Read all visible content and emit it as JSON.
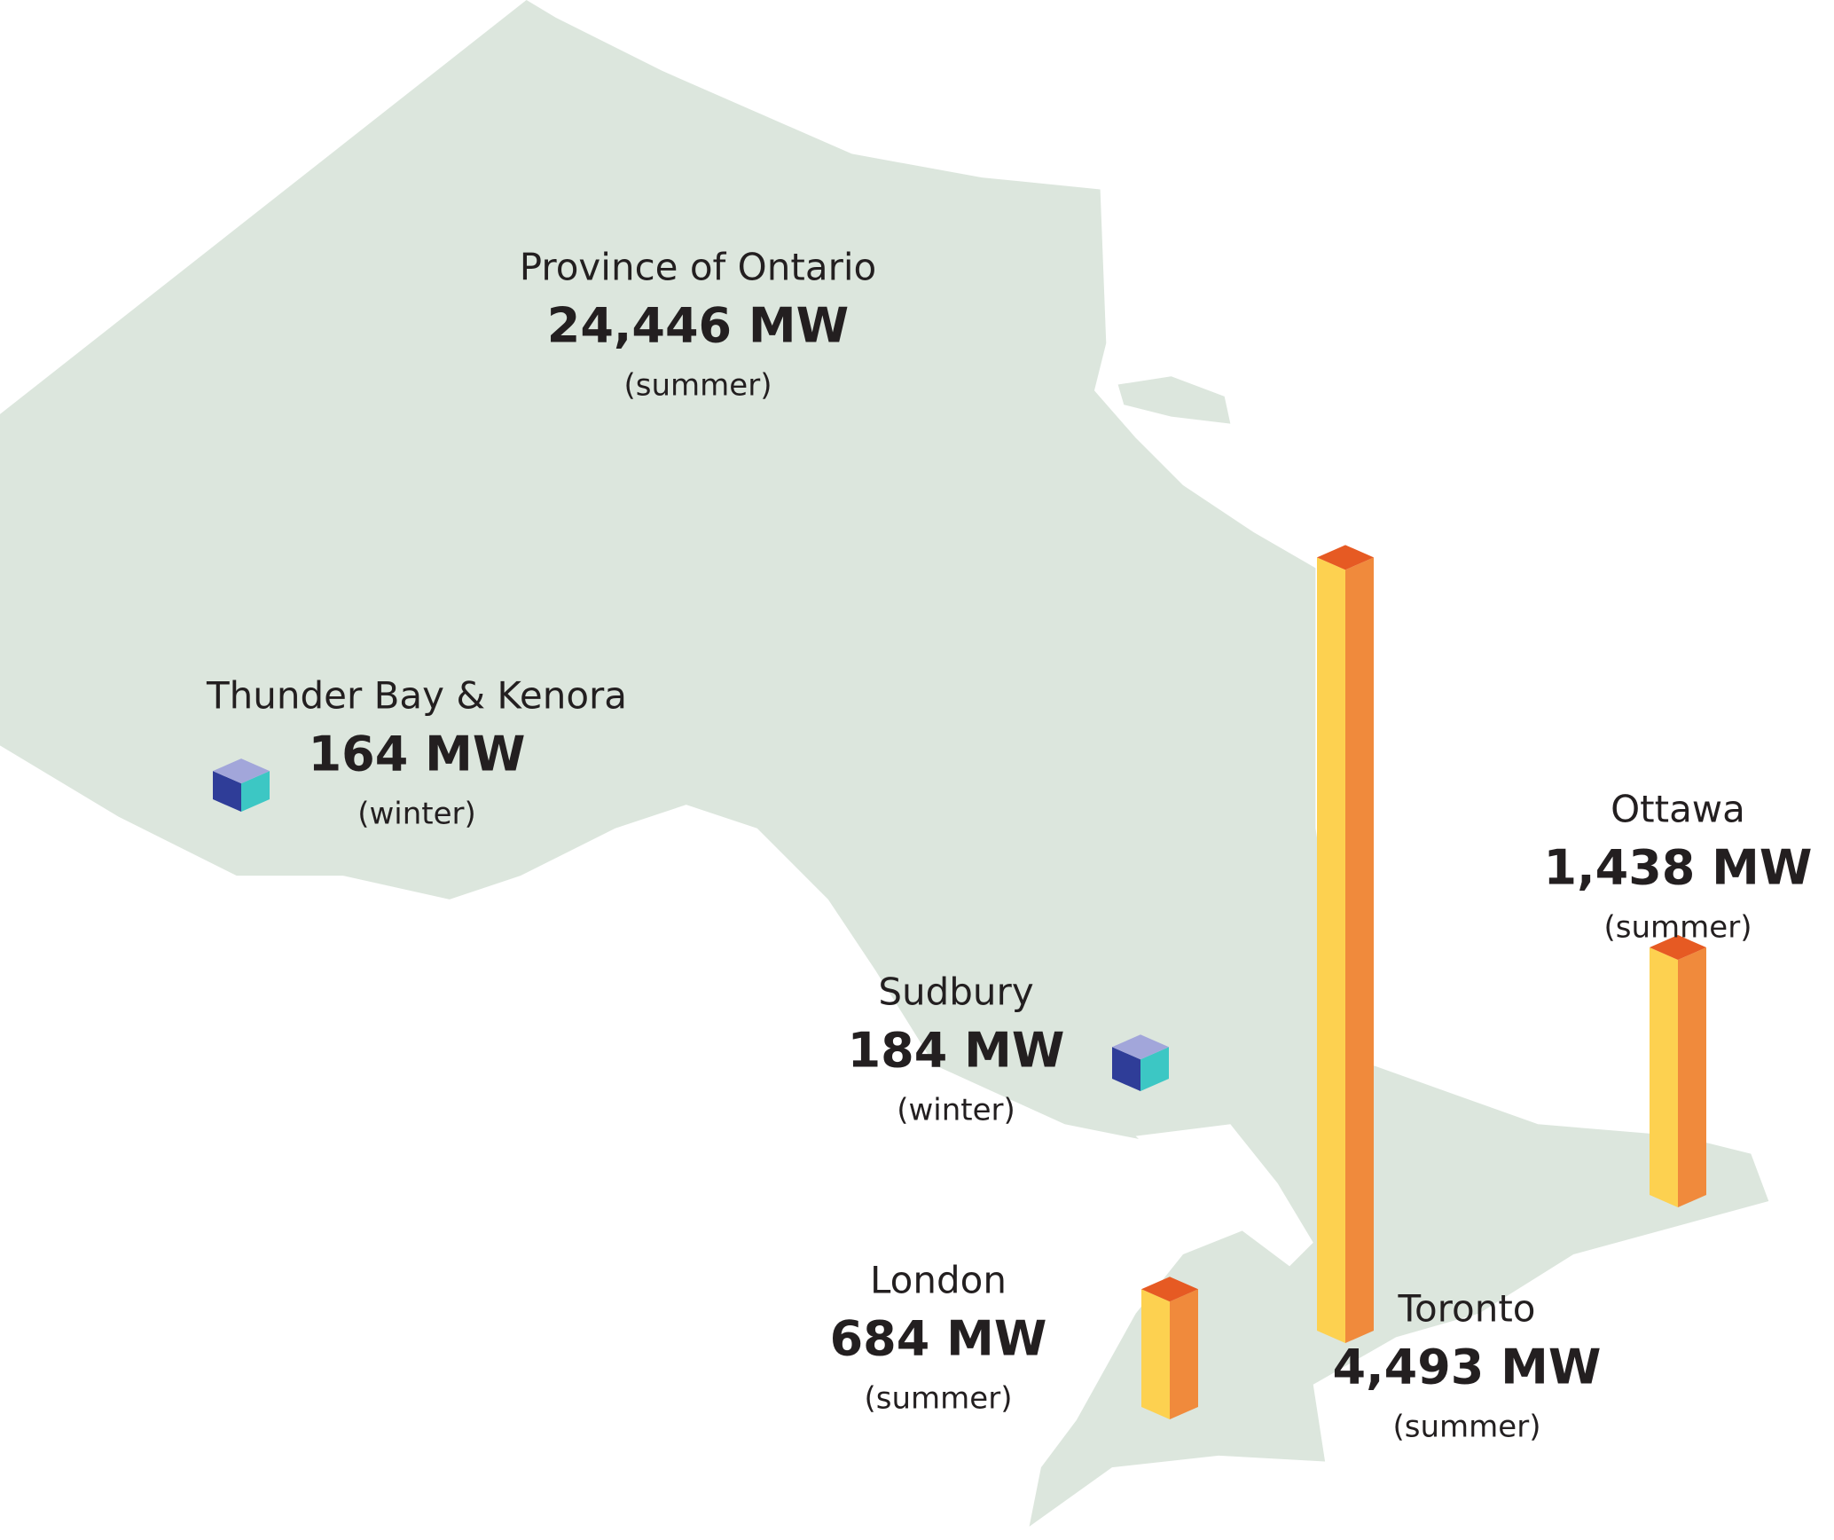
{
  "regions": [
    {
      "name": "Province of Ontario",
      "value": 24446,
      "value_label": "24,446 MW",
      "season": "(summer)"
    },
    {
      "name": "Thunder Bay & Kenora",
      "value": 164,
      "value_label": "164 MW",
      "season": "(winter)",
      "colors": [
        "#2f3d98",
        "#3cc7c4",
        "#a2a6da"
      ]
    },
    {
      "name": "Sudbury",
      "value": 184,
      "value_label": "184 MW",
      "season": "(winter)",
      "colors": [
        "#2f3d98",
        "#3cc7c4",
        "#a2a6da"
      ]
    },
    {
      "name": "London",
      "value": 684,
      "value_label": "684 MW",
      "season": "(summer)",
      "colors": [
        "#fdd150",
        "#f08a3c",
        "#e65a23"
      ]
    },
    {
      "name": "Toronto",
      "value": 4493,
      "value_label": "4,493 MW",
      "season": "(summer)",
      "colors": [
        "#fdd150",
        "#f08a3c",
        "#e65a23"
      ]
    },
    {
      "name": "Ottawa",
      "value": 1438,
      "value_label": "1,438 MW",
      "season": "(summer)",
      "colors": [
        "#fdd150",
        "#f08a3c",
        "#e65a23"
      ]
    }
  ]
}
